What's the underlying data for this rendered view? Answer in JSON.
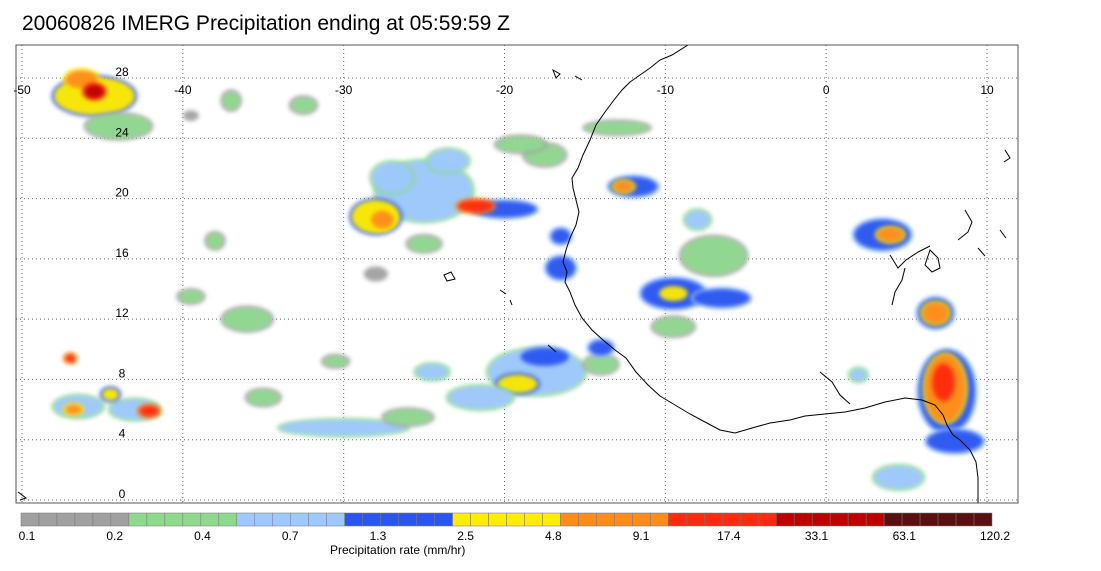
{
  "title": "20060826 IMERG Precipitation ending at 05:59:59 Z",
  "map": {
    "lon_labels": [
      "-50",
      "-40",
      "-30",
      "-20",
      "-10",
      "0",
      "10"
    ],
    "lat_labels": [
      "28",
      "24",
      "20",
      "16",
      "12",
      "8",
      "4",
      "0"
    ],
    "grid": "dotted",
    "lon_range": [
      -50,
      10
    ],
    "lat_range": [
      -0.5,
      29.5
    ],
    "coastline_color": "#000000"
  },
  "colorbar": {
    "label": "Precipitation rate (mm/hr)",
    "tick_labels": [
      "0.1",
      "0.2",
      "0.4",
      "0.7",
      "1.3",
      "2.5",
      "4.8",
      "9.1",
      "17.4",
      "33.1",
      "63.1",
      "120.2"
    ],
    "groups": [
      {
        "color": "#a0a0a0",
        "count": 6
      },
      {
        "color": "#8fd98f",
        "count": 6
      },
      {
        "color": "#9ec8ff",
        "count": 6
      },
      {
        "color": "#2a55f0",
        "count": 6
      },
      {
        "color": "#ffec00",
        "count": 6
      },
      {
        "color": "#ff8c1a",
        "count": 6
      },
      {
        "color": "#ff2a10",
        "count": 6
      },
      {
        "color": "#c00000",
        "count": 6
      },
      {
        "color": "#5a1010",
        "count": 6
      }
    ]
  },
  "precip_clusters": [
    {
      "lon": -45.5,
      "lat": 26.8,
      "w": 5,
      "h": 2.5,
      "i": 4
    },
    {
      "lon": -46.3,
      "lat": 27.9,
      "w": 2,
      "h": 1.2,
      "i": 5
    },
    {
      "lon": -45.5,
      "lat": 27.1,
      "w": 1.2,
      "h": 0.9,
      "i": 7
    },
    {
      "lon": -44,
      "lat": 24.8,
      "w": 4,
      "h": 1.6,
      "i": 1
    },
    {
      "lon": -37,
      "lat": 26.5,
      "w": 1,
      "h": 1.2,
      "i": 1
    },
    {
      "lon": -32.5,
      "lat": 26.2,
      "w": 1.5,
      "h": 1,
      "i": 1
    },
    {
      "lon": -39.5,
      "lat": 25.5,
      "w": 1,
      "h": 0.7,
      "i": 0
    },
    {
      "lon": -25,
      "lat": 20.5,
      "w": 6,
      "h": 4,
      "i": 2
    },
    {
      "lon": -28,
      "lat": 18.8,
      "w": 3,
      "h": 2.2,
      "i": 4
    },
    {
      "lon": -27.6,
      "lat": 18.6,
      "w": 1.4,
      "h": 1.2,
      "i": 5
    },
    {
      "lon": -27,
      "lat": 21.4,
      "w": 2.5,
      "h": 2,
      "i": 2
    },
    {
      "lon": -23.5,
      "lat": 22.5,
      "w": 2.5,
      "h": 1.5,
      "i": 2
    },
    {
      "lon": -20,
      "lat": 19.3,
      "w": 4,
      "h": 1.1,
      "i": 3
    },
    {
      "lon": -21.8,
      "lat": 19.5,
      "w": 2.2,
      "h": 0.8,
      "i": 6
    },
    {
      "lon": -16.5,
      "lat": 17.5,
      "w": 1.2,
      "h": 1,
      "i": 3
    },
    {
      "lon": -16.5,
      "lat": 15.4,
      "w": 1.8,
      "h": 1.5,
      "i": 3
    },
    {
      "lon": -17.5,
      "lat": 22.9,
      "w": 2.5,
      "h": 1.4,
      "i": 1
    },
    {
      "lon": -19,
      "lat": 23.6,
      "w": 3,
      "h": 1,
      "i": 1
    },
    {
      "lon": -13,
      "lat": 24.7,
      "w": 4,
      "h": 0.8,
      "i": 1
    },
    {
      "lon": -12,
      "lat": 20.8,
      "w": 3,
      "h": 1.3,
      "i": 3
    },
    {
      "lon": -12.6,
      "lat": 20.8,
      "w": 1.2,
      "h": 0.7,
      "i": 5
    },
    {
      "lon": -9.5,
      "lat": 13.7,
      "w": 4,
      "h": 2,
      "i": 3
    },
    {
      "lon": -9.5,
      "lat": 13.7,
      "w": 1.8,
      "h": 1,
      "i": 4
    },
    {
      "lon": -6.5,
      "lat": 13.4,
      "w": 3.5,
      "h": 1.2,
      "i": 3
    },
    {
      "lon": -7,
      "lat": 16.2,
      "w": 4,
      "h": 2.5,
      "i": 1
    },
    {
      "lon": -8,
      "lat": 18.6,
      "w": 1.5,
      "h": 1.2,
      "i": 2
    },
    {
      "lon": -9.5,
      "lat": 11.5,
      "w": 2.5,
      "h": 1.2,
      "i": 1
    },
    {
      "lon": 3.5,
      "lat": 17.6,
      "w": 3.5,
      "h": 2,
      "i": 3
    },
    {
      "lon": 4,
      "lat": 17.6,
      "w": 1.6,
      "h": 0.9,
      "i": 5
    },
    {
      "lon": 6.8,
      "lat": 12.4,
      "w": 2.2,
      "h": 2,
      "i": 3
    },
    {
      "lon": 6.8,
      "lat": 12.4,
      "w": 1.6,
      "h": 1.4,
      "i": 5
    },
    {
      "lon": 7.5,
      "lat": 7.2,
      "w": 3.5,
      "h": 5.5,
      "i": 3
    },
    {
      "lon": 7.4,
      "lat": 7.4,
      "w": 2.5,
      "h": 4.5,
      "i": 5
    },
    {
      "lon": 7.3,
      "lat": 7.8,
      "w": 1.4,
      "h": 2.5,
      "i": 6
    },
    {
      "lon": 8,
      "lat": 3.9,
      "w": 3.5,
      "h": 1.5,
      "i": 3
    },
    {
      "lon": 4.5,
      "lat": 1.5,
      "w": 3,
      "h": 1.5,
      "i": 2
    },
    {
      "lon": 2,
      "lat": 8.3,
      "w": 1,
      "h": 0.8,
      "i": 2
    },
    {
      "lon": -18,
      "lat": 8.5,
      "w": 6,
      "h": 3,
      "i": 2
    },
    {
      "lon": -19.2,
      "lat": 7.7,
      "w": 2.5,
      "h": 1.2,
      "i": 4
    },
    {
      "lon": -17.5,
      "lat": 9.5,
      "w": 3,
      "h": 1.2,
      "i": 3
    },
    {
      "lon": -21.5,
      "lat": 6.8,
      "w": 4,
      "h": 1.5,
      "i": 2
    },
    {
      "lon": -24.5,
      "lat": 8.5,
      "w": 2,
      "h": 1,
      "i": 2
    },
    {
      "lon": -14,
      "lat": 9,
      "w": 2,
      "h": 1.2,
      "i": 1
    },
    {
      "lon": -14,
      "lat": 10.1,
      "w": 1.5,
      "h": 1,
      "i": 3
    },
    {
      "lon": -30,
      "lat": 4.8,
      "w": 8,
      "h": 1,
      "i": 2
    },
    {
      "lon": -35,
      "lat": 6.8,
      "w": 2,
      "h": 1,
      "i": 1
    },
    {
      "lon": -26,
      "lat": 5.5,
      "w": 3,
      "h": 1,
      "i": 1
    },
    {
      "lon": -46.5,
      "lat": 6.2,
      "w": 3,
      "h": 1.4,
      "i": 2
    },
    {
      "lon": -43,
      "lat": 6,
      "w": 3,
      "h": 1.3,
      "i": 2
    },
    {
      "lon": -42.1,
      "lat": 5.9,
      "w": 1.2,
      "h": 0.7,
      "i": 6
    },
    {
      "lon": -46.8,
      "lat": 6,
      "w": 1,
      "h": 0.6,
      "i": 5
    },
    {
      "lon": -44.5,
      "lat": 7,
      "w": 1,
      "h": 0.8,
      "i": 4
    },
    {
      "lon": -47,
      "lat": 9.4,
      "w": 0.6,
      "h": 0.5,
      "i": 6
    },
    {
      "lon": -39.5,
      "lat": 13.5,
      "w": 1.5,
      "h": 0.8,
      "i": 1
    },
    {
      "lon": -36,
      "lat": 12,
      "w": 3,
      "h": 1.5,
      "i": 1
    },
    {
      "lon": -30.5,
      "lat": 9.2,
      "w": 1.5,
      "h": 0.7,
      "i": 1
    },
    {
      "lon": -38,
      "lat": 17.2,
      "w": 1,
      "h": 1,
      "i": 1
    },
    {
      "lon": -28,
      "lat": 15,
      "w": 1.5,
      "h": 1,
      "i": 0
    },
    {
      "lon": -25,
      "lat": 17,
      "w": 2,
      "h": 1,
      "i": 1
    }
  ]
}
